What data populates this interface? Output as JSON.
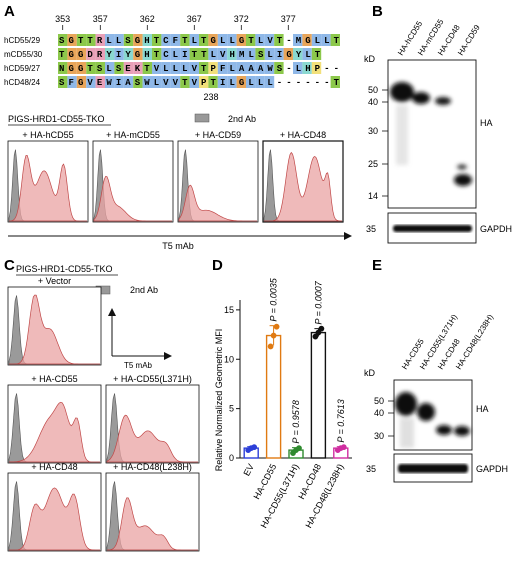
{
  "panels": {
    "A": {
      "letter": "A",
      "positions": [
        "353",
        "357",
        "362",
        "367",
        "372",
        "377"
      ],
      "rows": [
        {
          "name": "hCD55/29",
          "seq": "SGTTRLLSGHTCFTLTGLLGTLVT-MGLLT"
        },
        {
          "name": "mCD55/30",
          "seq": "TGGDRYIYGHTCLITTLVHMLSLIGYLT"
        },
        {
          "name": "hCD59/27",
          "seq": "NGGTSLSEKTVLLLVTPFLAAAWS-LHP--"
        },
        {
          "name": "hCD48/24",
          "seq": "SFGVEWIASWLVVTVPTILGLLL------T"
        }
      ],
      "marker_238": "238",
      "cell_line": "PIGS-HRD1-CD55-TKO",
      "legend_label": "2nd Ab",
      "hist_labels": [
        "+ HA-hCD55",
        "+ HA-mCD55",
        "+ HA-CD59",
        "+ HA-CD48"
      ],
      "x_label": "T5 mAb"
    },
    "B": {
      "letter": "B",
      "lanes": [
        "HA-hCD55",
        "HA-mCD55",
        "HA-CD48",
        "HA-CD59"
      ],
      "kd_label": "kD",
      "markers": [
        "50",
        "40",
        "30",
        "25",
        "14"
      ],
      "band_label": "HA",
      "gapdh_marker": "35",
      "gapdh_label": "GAPDH"
    },
    "C": {
      "letter": "C",
      "cell_line": "PIGS-HRD1-CD55-TKO",
      "legend_label": "2nd Ab",
      "hist_labels": [
        "+ Vector",
        "+ HA-CD55",
        "+ HA-CD55(L371H)",
        "+ HA-CD48",
        "+ HA-CD48(L238H)"
      ],
      "x_label": "T5 mAb"
    },
    "D": {
      "letter": "D",
      "chart_data": {
        "type": "bar",
        "categories": [
          "EV",
          "HA-CD55",
          "HA-CD55(L371H)",
          "HA-CD48",
          "HA-CD48(L238H)"
        ],
        "values": [
          1.0,
          12.4,
          0.8,
          12.7,
          1.0
        ],
        "points": [
          [
            0.8,
            1.0,
            1.1
          ],
          [
            11.3,
            12.4,
            13.3
          ],
          [
            0.5,
            0.8,
            1.0
          ],
          [
            12.3,
            12.7,
            13.1
          ],
          [
            0.8,
            1.0,
            1.1
          ]
        ],
        "errors": [
          0.15,
          1.0,
          0.25,
          0.4,
          0.15
        ],
        "pvalues": [
          "",
          "P = 0.0035",
          "P = 0.9578",
          "P = 0.0007",
          "P = 0.7613"
        ],
        "colors": [
          "#2c3fd8",
          "#e07a12",
          "#2f8a2f",
          "#111111",
          "#d02ea0"
        ],
        "ylabel": "Relative Normalized Geometric MFI",
        "ylim": [
          0,
          16
        ],
        "yticks": [
          "0",
          "5",
          "10",
          "15"
        ]
      }
    },
    "E": {
      "letter": "E",
      "lanes": [
        "HA-CD55",
        "HA-CD55(L371H)",
        "HA-CD48",
        "HA-CD48(L238H)"
      ],
      "kd_label": "kD",
      "markers": [
        "50",
        "40",
        "30"
      ],
      "band_label": "HA",
      "gapdh_marker": "35",
      "gapdh_label": "GAPDH"
    }
  }
}
